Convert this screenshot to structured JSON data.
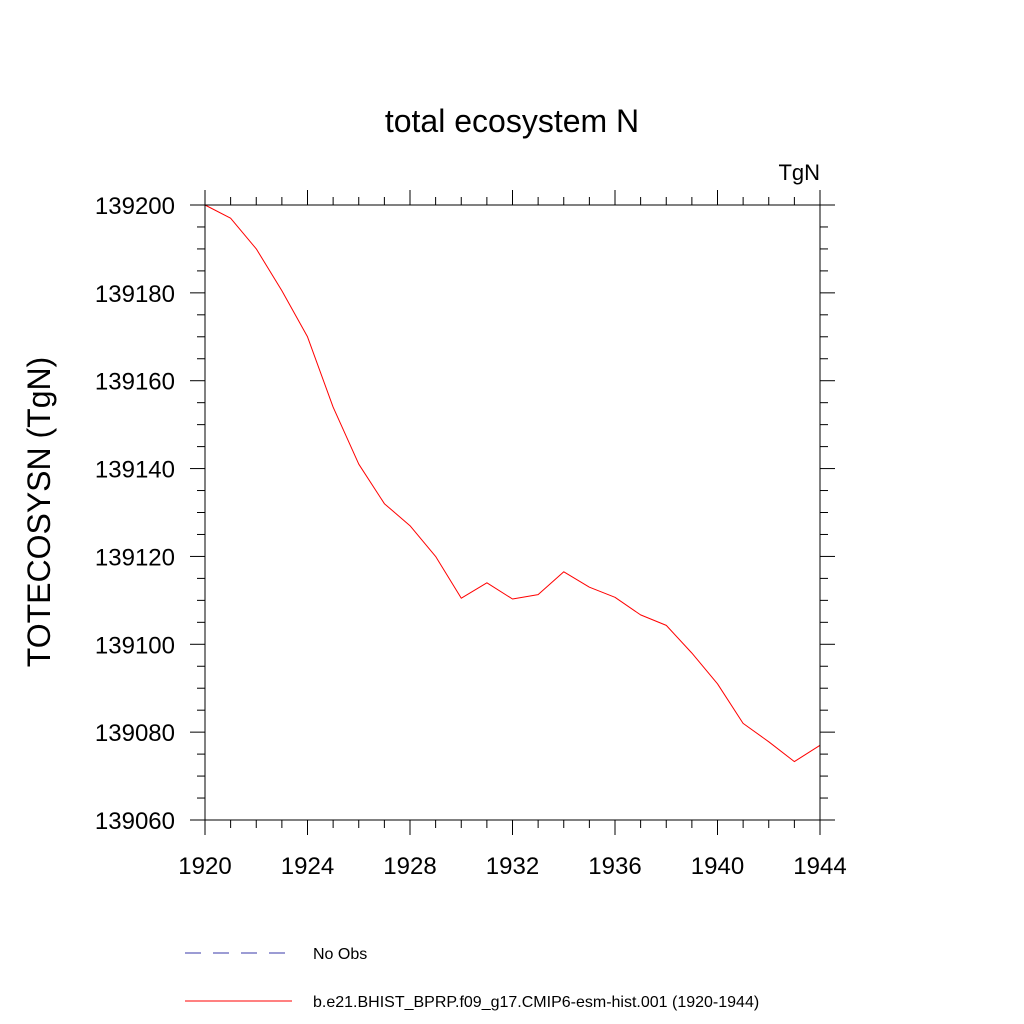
{
  "chart_data": {
    "type": "line",
    "title": "total ecosystem N",
    "units_label": "TgN",
    "xlabel": "",
    "ylabel": "TOTECOSYSN  (TgN)",
    "xlim": [
      1920,
      1944
    ],
    "ylim": [
      139060,
      139200
    ],
    "x_ticks": [
      1920,
      1924,
      1928,
      1932,
      1936,
      1940,
      1944
    ],
    "x_tick_labels": [
      "1920",
      "1924",
      "1928",
      "1932",
      "1936",
      "1940",
      "1944"
    ],
    "y_ticks": [
      139060,
      139080,
      139100,
      139120,
      139140,
      139160,
      139180,
      139200
    ],
    "y_tick_labels": [
      "139060",
      "139080",
      "139100",
      "139120",
      "139140",
      "139160",
      "139180",
      "139200"
    ],
    "x_minor_step": 1,
    "y_minor_step": 5,
    "grid": false,
    "legend_position": "bottom",
    "series": [
      {
        "name": "b.e21.BHIST_BPRP.f09_g17.CMIP6-esm-hist.001 (1920-1944)",
        "color": "#ff0000",
        "style": "solid",
        "x": [
          1920,
          1921,
          1922,
          1923,
          1924,
          1925,
          1926,
          1927,
          1928,
          1929,
          1930,
          1931,
          1932,
          1933,
          1934,
          1935,
          1936,
          1937,
          1938,
          1939,
          1940,
          1941,
          1942,
          1943,
          1944
        ],
        "values": [
          139200,
          139197,
          139190,
          139180.5,
          139170,
          139154,
          139141,
          139132,
          139127,
          139120,
          139110.5,
          139114,
          139110.3,
          139111.3,
          139116.5,
          139113,
          139110.7,
          139106.7,
          139104.3,
          139098,
          139091,
          139082,
          139077.8,
          139073.3,
          139077
        ]
      }
    ],
    "legend": [
      {
        "label": "No Obs",
        "color": "#3a3aa8",
        "style": "dashed"
      },
      {
        "label": "b.e21.BHIST_BPRP.f09_g17.CMIP6-esm-hist.001 (1920-1944)",
        "color": "#ff0000",
        "style": "solid"
      }
    ]
  }
}
